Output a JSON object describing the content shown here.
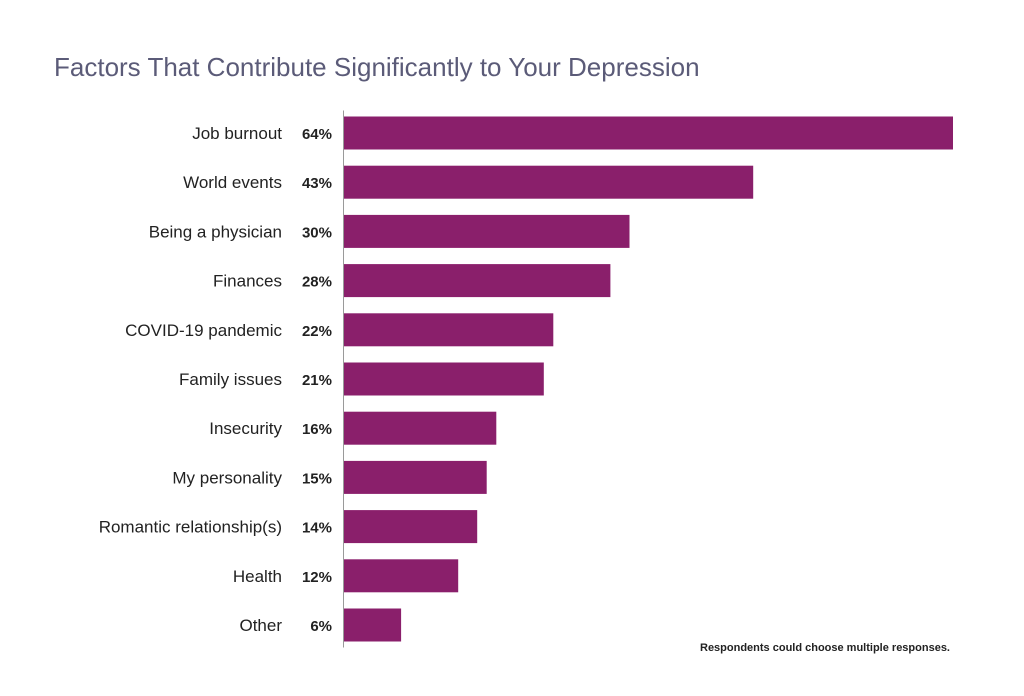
{
  "chart_data": {
    "type": "bar",
    "orientation": "horizontal",
    "title": "Factors That Contribute Significantly to Your Depression",
    "categories": [
      "Job burnout",
      "World events",
      "Being a physician",
      "Finances",
      "COVID-19 pandemic",
      "Family issues",
      "Insecurity",
      "My personality",
      "Romantic relationship(s)",
      "Health",
      "Other"
    ],
    "values": [
      64,
      43,
      30,
      28,
      22,
      21,
      16,
      15,
      14,
      12,
      6
    ],
    "value_labels": [
      "64%",
      "43%",
      "30%",
      "28%",
      "22%",
      "21%",
      "16%",
      "15%",
      "14%",
      "12%",
      "6%"
    ],
    "xlim": [
      0,
      64
    ],
    "grid": false,
    "legend": "none",
    "note": "Respondents could choose multiple responses.",
    "colors": {
      "bar": "#8a1f6b",
      "title": "#5b5b78",
      "text": "#222222",
      "axis": "#9a9a9a"
    }
  }
}
